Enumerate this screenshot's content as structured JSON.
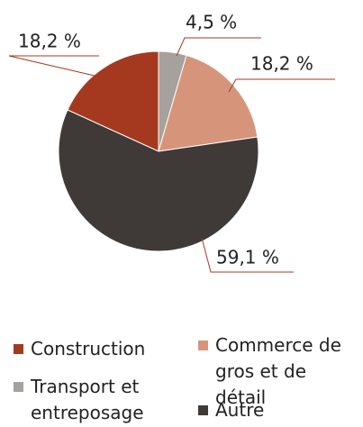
{
  "chart_data": {
    "type": "pie",
    "categories": [
      "Construction",
      "Transport et entreposage",
      "Commerce de gros et de détail",
      "Autre"
    ],
    "values": [
      18.2,
      4.5,
      18.2,
      59.1
    ],
    "value_labels": [
      "18,2 %",
      "4,5 %",
      "18,2 %",
      "59,1 %"
    ],
    "colors": [
      "#a5391f",
      "#a6a19d",
      "#d6957b",
      "#3f3a37"
    ],
    "legend": "bottom"
  }
}
